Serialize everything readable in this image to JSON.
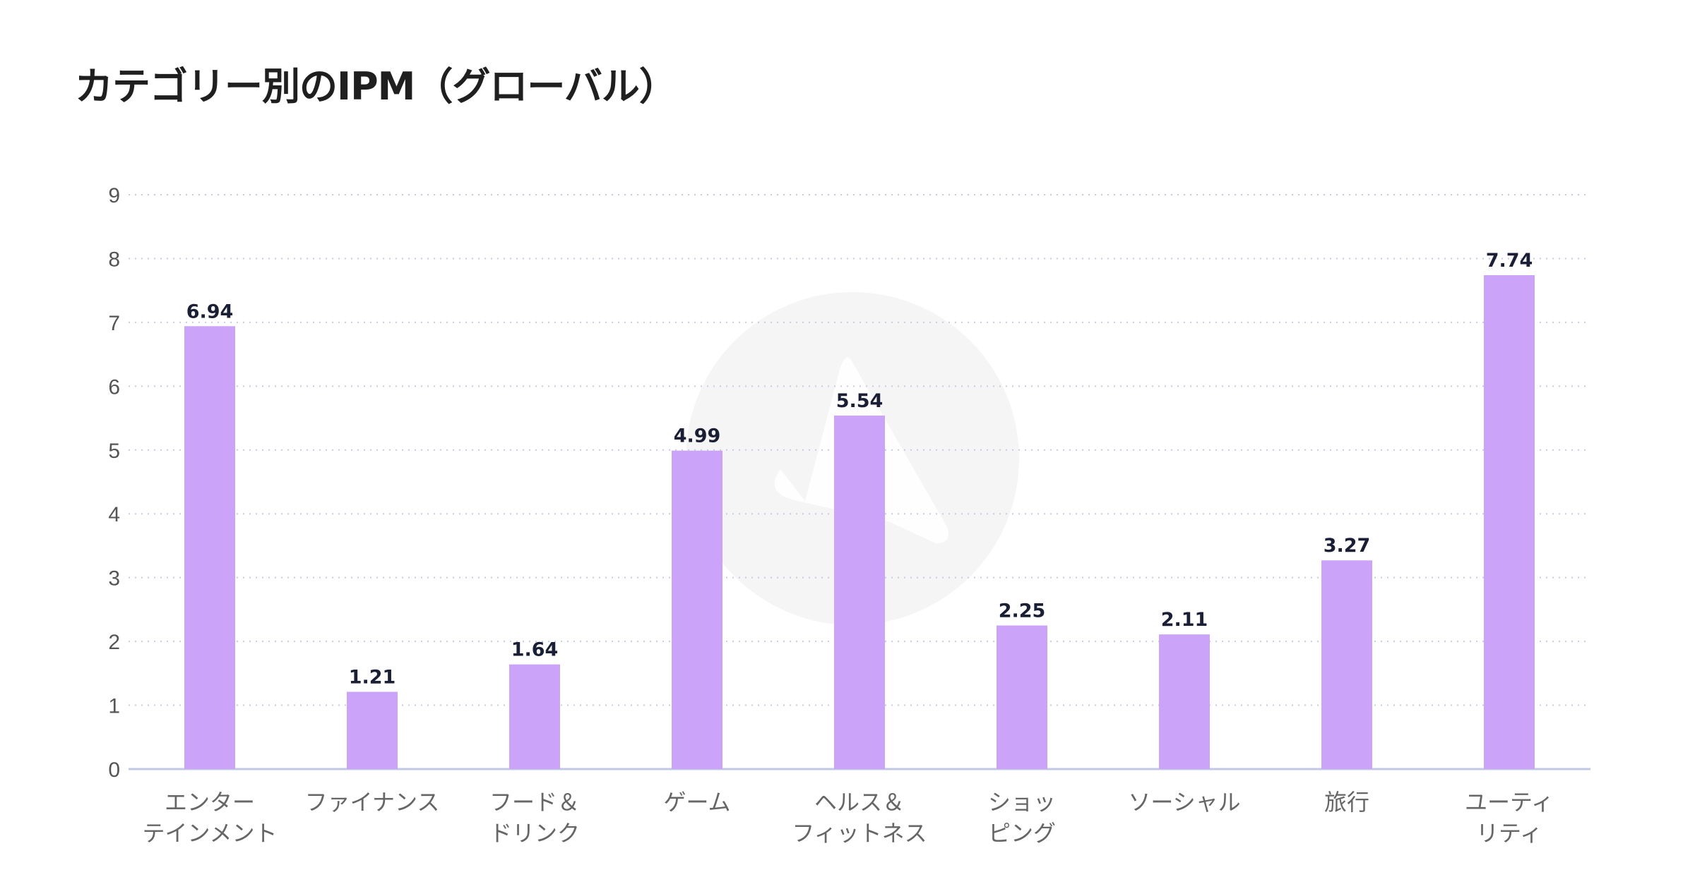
{
  "chart_data": {
    "type": "bar",
    "title": "カテゴリー別のIPM（グローバル）",
    "categories": [
      "エンター\nテインメント",
      "ファイナンス",
      "フード＆\nドリンク",
      "ゲーム",
      "ヘルス＆\nフィットネス",
      "ショッ\nピング",
      "ソーシャル",
      "旅行",
      "ユーティ\nリティ"
    ],
    "values": [
      6.94,
      1.21,
      1.64,
      4.99,
      5.54,
      2.25,
      2.11,
      3.27,
      7.74
    ],
    "value_labels": [
      "6.94",
      "1.21",
      "1.64",
      "4.99",
      "5.54",
      "2.25",
      "2.11",
      "3.27",
      "7.74"
    ],
    "yticks": [
      "0",
      "1",
      "2",
      "3",
      "4",
      "5",
      "6",
      "7",
      "8",
      "9"
    ],
    "ylim": [
      0,
      9
    ],
    "xlabel": "",
    "ylabel": "",
    "grid": "horizontal dotted",
    "colors": {
      "bar": "#cba4fa",
      "grid": "#c5cbe3",
      "axis": "#c0c8e4",
      "watermark": "#f5f5f5"
    }
  }
}
